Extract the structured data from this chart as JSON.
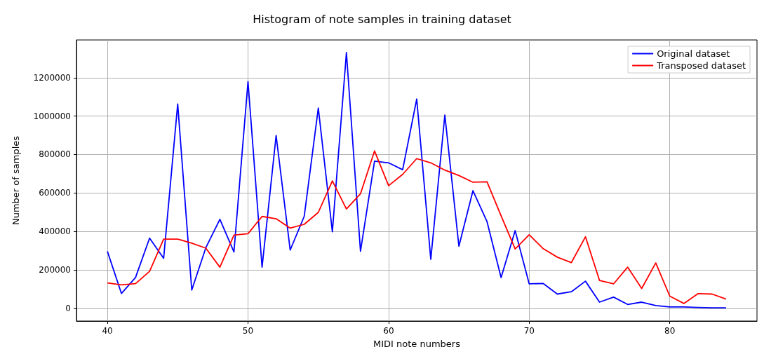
{
  "chart_data": {
    "type": "line",
    "title": "Histogram of note samples in training dataset",
    "xlabel": "MIDI note numbers",
    "ylabel": "Number of samples",
    "x": [
      40,
      41,
      42,
      43,
      44,
      45,
      46,
      47,
      48,
      49,
      50,
      51,
      52,
      53,
      54,
      55,
      56,
      57,
      58,
      59,
      60,
      61,
      62,
      63,
      64,
      65,
      66,
      67,
      68,
      69,
      70,
      71,
      72,
      73,
      74,
      75,
      76,
      77,
      78,
      79,
      80,
      81,
      82,
      83,
      84
    ],
    "series": [
      {
        "name": "Original dataset",
        "color": "#0000ff",
        "values": [
          296000,
          77000,
          160000,
          365000,
          260000,
          1063000,
          95000,
          315000,
          463000,
          293000,
          1180000,
          214000,
          899000,
          303000,
          479000,
          1042000,
          398000,
          1331000,
          297000,
          766000,
          757000,
          721000,
          1089000,
          255000,
          1006000,
          323000,
          612000,
          451000,
          160000,
          404000,
          127000,
          129000,
          74000,
          86000,
          141000,
          32000,
          58000,
          20000,
          32000,
          14000,
          7000,
          7000,
          4000,
          2000,
          2000
        ]
      },
      {
        "name": "Transposed dataset",
        "color": "#ff0000",
        "values": [
          132000,
          122000,
          128000,
          192000,
          360000,
          360000,
          339000,
          313000,
          214000,
          381000,
          388000,
          478000,
          466000,
          417000,
          437000,
          499000,
          663000,
          517000,
          596000,
          819000,
          638000,
          697000,
          779000,
          757000,
          719000,
          691000,
          656000,
          658000,
          481000,
          309000,
          383000,
          310000,
          266000,
          238000,
          372000,
          145000,
          127000,
          214000,
          103000,
          236000,
          63000,
          25000,
          76000,
          74000,
          48000
        ]
      }
    ],
    "xlim": [
      37.8,
      86.2
    ],
    "xticks": [
      40,
      50,
      60,
      70,
      80
    ],
    "ylim": [
      -66500,
      1396500
    ],
    "yticks": [
      0,
      200000,
      400000,
      600000,
      800000,
      1000000,
      1200000
    ],
    "grid": true,
    "legend": "top right",
    "marker": "none",
    "line_style": "solid"
  }
}
